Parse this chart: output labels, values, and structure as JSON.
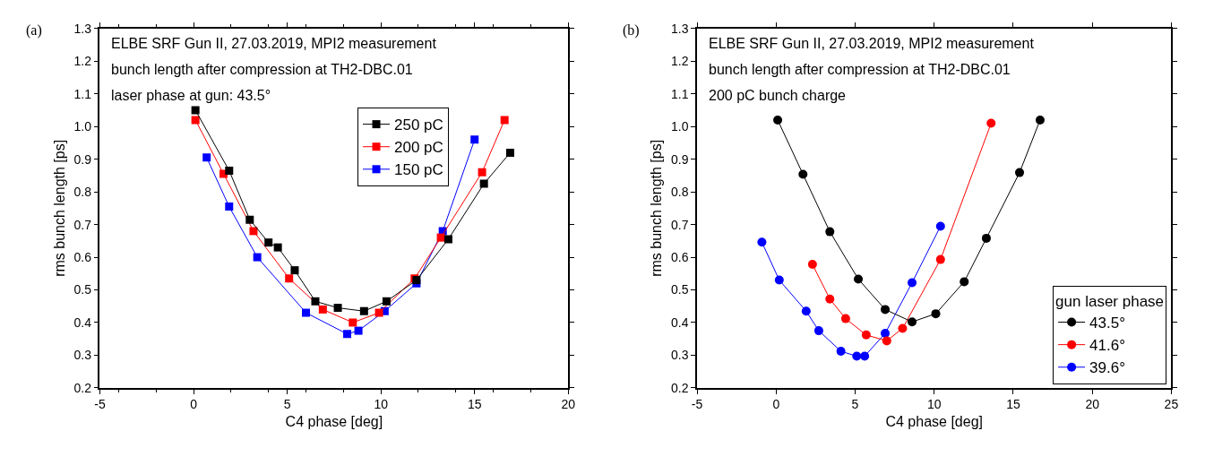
{
  "chart_data": [
    {
      "type": "line",
      "title": "(a)",
      "xlabel": "C4 phase [deg]",
      "ylabel": "rms bunch length [ps]",
      "annotations": [
        "ELBE SRF Gun II, 27.03.2019, MPI2 measurement",
        "bunch length after compression at TH2-DBC.01",
        "laser phase at gun: 43.5°"
      ],
      "xlim": [
        -5,
        20
      ],
      "xticks": [
        -5,
        0,
        5,
        10,
        15,
        20
      ],
      "ylim": [
        0.2,
        1.3
      ],
      "yticks": [
        {
          "value": 0.2,
          "label": "0.2"
        },
        {
          "value": 0.3,
          "label": "0.3"
        },
        {
          "value": 0.4,
          "label": "0.4"
        },
        {
          "value": 0.5,
          "label": "0.5"
        },
        {
          "value": 0.6,
          "label": "0.6"
        },
        {
          "value": 0.7,
          "label": "0.7"
        },
        {
          "value": 0.8,
          "label": "0.8"
        },
        {
          "value": 0.9,
          "label": "0.9"
        },
        {
          "value": 1.0,
          "label": "1.0"
        },
        {
          "value": 1.1,
          "label": "1.1"
        },
        {
          "value": 1.2,
          "label": "1.2"
        },
        {
          "value": 1.3,
          "label": "1.3"
        }
      ],
      "legend": "top",
      "marker": "square",
      "line_style": "solid",
      "series": [
        {
          "name": "250 pC",
          "color": "#000000",
          "x": [
            0.1,
            1.9,
            3.0,
            4.0,
            4.5,
            5.4,
            6.5,
            7.7,
            9.1,
            10.3,
            11.9,
            13.6,
            15.5,
            16.9
          ],
          "values": [
            1.05,
            0.865,
            0.715,
            0.645,
            0.63,
            0.56,
            0.465,
            0.445,
            0.435,
            0.465,
            0.53,
            0.655,
            0.825,
            0.92
          ]
        },
        {
          "name": "200 pC",
          "color": "#ff0000",
          "x": [
            0.1,
            1.6,
            3.2,
            5.1,
            6.9,
            8.5,
            9.9,
            11.8,
            13.2,
            15.4,
            16.6
          ],
          "values": [
            1.02,
            0.855,
            0.68,
            0.535,
            0.44,
            0.4,
            0.43,
            0.535,
            0.66,
            0.86,
            1.02
          ]
        },
        {
          "name": "150 pC",
          "color": "#0000ff",
          "x": [
            0.7,
            1.9,
            3.4,
            6.0,
            8.2,
            8.8,
            10.2,
            11.9,
            13.3,
            15.0
          ],
          "values": [
            0.905,
            0.755,
            0.6,
            0.43,
            0.365,
            0.375,
            0.435,
            0.52,
            0.68,
            0.96
          ]
        }
      ]
    },
    {
      "type": "line",
      "title": "(b)",
      "xlabel": "C4 phase [deg]",
      "ylabel": "rms bunch length [ps]",
      "legend_title": "gun laser phase",
      "annotations": [
        "ELBE SRF Gun II, 27.03.2019, MPI2 measurement",
        "bunch length after compression at TH2-DBC.01",
        "200 pC bunch charge"
      ],
      "xlim": [
        -5,
        25
      ],
      "xticks": [
        -5,
        0,
        5,
        10,
        15,
        20,
        25
      ],
      "ylim": [
        0.2,
        1.3
      ],
      "yticks": [
        {
          "value": 0.2,
          "label": "0.2"
        },
        {
          "value": 0.3,
          "label": "0.3"
        },
        {
          "value": 0.4,
          "label": "0.4"
        },
        {
          "value": 0.5,
          "label": "0.5"
        },
        {
          "value": 0.6,
          "label": "0.6"
        },
        {
          "value": 0.7,
          "label": "0.7"
        },
        {
          "value": 0.8,
          "label": "0.8"
        },
        {
          "value": 0.9,
          "label": "0.9"
        },
        {
          "value": 1.0,
          "label": "1.0"
        },
        {
          "value": 1.1,
          "label": "1.1"
        },
        {
          "value": 1.2,
          "label": "1.2"
        },
        {
          "value": 1.3,
          "label": "1.3"
        }
      ],
      "legend": "bottom right",
      "marker": "circle",
      "line_style": "solid",
      "series": [
        {
          "name": "43.5°",
          "color": "#000000",
          "x": [
            0.1,
            1.7,
            3.4,
            5.2,
            6.9,
            8.6,
            10.1,
            11.9,
            13.3,
            15.4,
            16.7
          ],
          "values": [
            1.02,
            0.854,
            0.678,
            0.533,
            0.44,
            0.402,
            0.427,
            0.525,
            0.658,
            0.859,
            1.02
          ]
        },
        {
          "name": "41.6°",
          "color": "#ff0000",
          "x": [
            2.3,
            3.4,
            4.4,
            5.7,
            7.0,
            8.0,
            10.4,
            13.6
          ],
          "values": [
            0.578,
            0.472,
            0.412,
            0.362,
            0.344,
            0.382,
            0.593,
            1.01
          ]
        },
        {
          "name": "39.6°",
          "color": "#0000ff",
          "x": [
            -0.9,
            0.2,
            1.9,
            2.7,
            4.1,
            5.1,
            5.6,
            6.9,
            8.6,
            10.4
          ],
          "values": [
            0.646,
            0.53,
            0.435,
            0.375,
            0.312,
            0.297,
            0.297,
            0.367,
            0.522,
            0.695
          ]
        }
      ]
    }
  ]
}
